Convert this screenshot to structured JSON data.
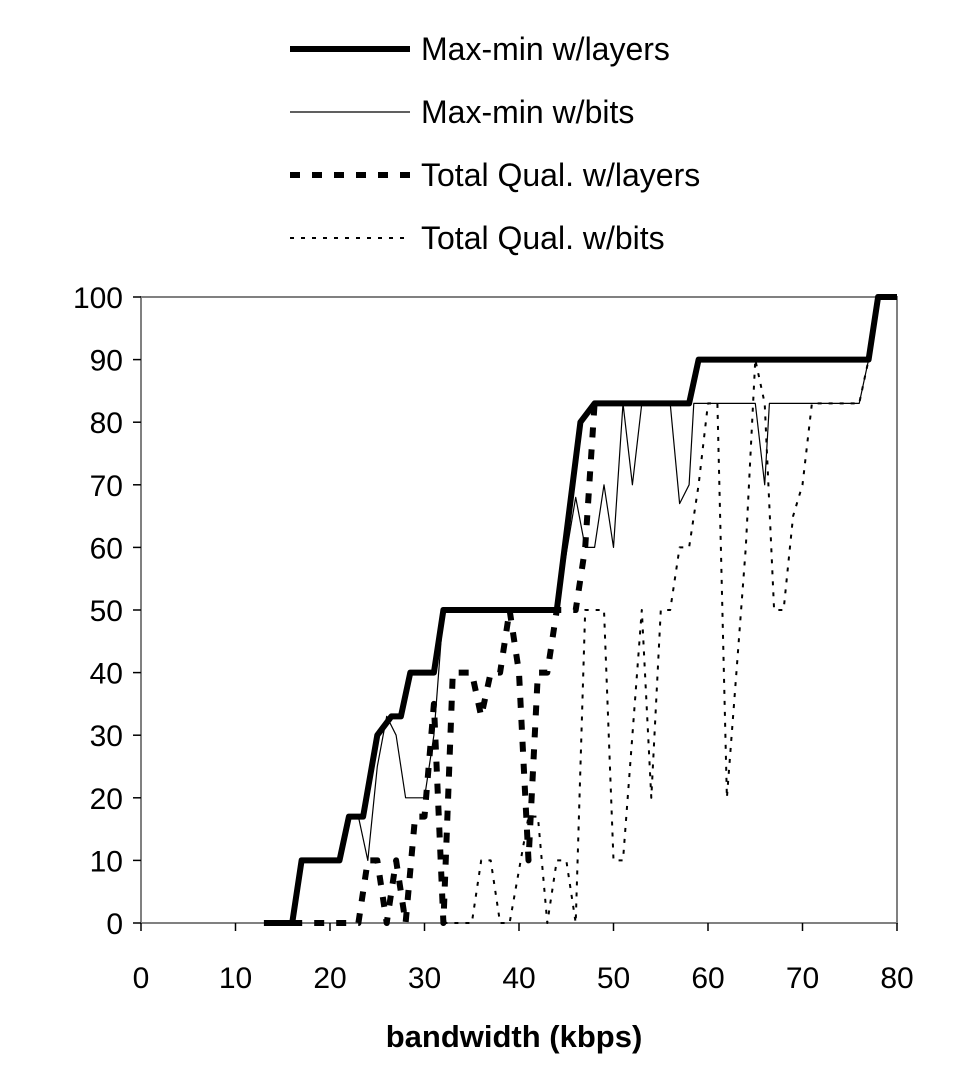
{
  "chart_data": {
    "type": "line",
    "xlabel": "bandwidth (kbps)",
    "ylabel": "",
    "xlim": [
      0,
      80
    ],
    "ylim": [
      0,
      100
    ],
    "x_ticks": [
      0,
      10,
      20,
      30,
      40,
      50,
      60,
      70,
      80
    ],
    "y_ticks": [
      0,
      10,
      20,
      30,
      40,
      50,
      60,
      70,
      80,
      90,
      100
    ],
    "grid": false,
    "legend_position": "top",
    "series": [
      {
        "name": "Max-min w/layers",
        "style": "thick-solid",
        "points": [
          [
            13,
            0
          ],
          [
            16,
            0
          ],
          [
            17,
            10
          ],
          [
            21,
            10
          ],
          [
            22,
            17
          ],
          [
            23.5,
            17
          ],
          [
            25,
            30
          ],
          [
            26.5,
            33
          ],
          [
            27.5,
            33
          ],
          [
            28.5,
            40
          ],
          [
            31,
            40
          ],
          [
            32,
            50
          ],
          [
            44,
            50
          ],
          [
            46.5,
            80
          ],
          [
            48,
            83
          ],
          [
            58,
            83
          ],
          [
            59,
            90
          ],
          [
            77,
            90
          ],
          [
            78,
            100
          ],
          [
            80,
            100
          ]
        ]
      },
      {
        "name": "Max-min w/bits",
        "style": "thin-solid",
        "points": [
          [
            23,
            17
          ],
          [
            24,
            10
          ],
          [
            25,
            25
          ],
          [
            26,
            33
          ],
          [
            27,
            30
          ],
          [
            28,
            20
          ],
          [
            30,
            20
          ],
          [
            31,
            30
          ],
          [
            32,
            50
          ],
          [
            44,
            50
          ],
          [
            46,
            68
          ],
          [
            47,
            60
          ],
          [
            48,
            60
          ],
          [
            49,
            70
          ],
          [
            50,
            60
          ],
          [
            51,
            83
          ],
          [
            52,
            70
          ],
          [
            53,
            83
          ],
          [
            56,
            83
          ],
          [
            57,
            67
          ],
          [
            58,
            70
          ],
          [
            58.5,
            83
          ],
          [
            65,
            83
          ],
          [
            66,
            70
          ],
          [
            66.5,
            83
          ],
          [
            76,
            83
          ],
          [
            77,
            90
          ]
        ]
      },
      {
        "name": "Total Qual. w/layers",
        "style": "thick-dashed",
        "points": [
          [
            16,
            0
          ],
          [
            23,
            0
          ],
          [
            24,
            10
          ],
          [
            25,
            10
          ],
          [
            26,
            0
          ],
          [
            27,
            10
          ],
          [
            28,
            0
          ],
          [
            29,
            17
          ],
          [
            30,
            17
          ],
          [
            31,
            35
          ],
          [
            32,
            0
          ],
          [
            33,
            40
          ],
          [
            35,
            40
          ],
          [
            36,
            33
          ],
          [
            37,
            40
          ],
          [
            38,
            40
          ],
          [
            39,
            50
          ],
          [
            40,
            40
          ],
          [
            41,
            10
          ],
          [
            42,
            40
          ],
          [
            43,
            40
          ],
          [
            44,
            50
          ],
          [
            45,
            50
          ],
          [
            46,
            50
          ],
          [
            47,
            60
          ],
          [
            48,
            83
          ]
        ]
      },
      {
        "name": "Total Qual. w/bits",
        "style": "thin-dotted",
        "points": [
          [
            32,
            0
          ],
          [
            35,
            0
          ],
          [
            36,
            10
          ],
          [
            37,
            10
          ],
          [
            38,
            0
          ],
          [
            39,
            0
          ],
          [
            41,
            17
          ],
          [
            42,
            17
          ],
          [
            43,
            0
          ],
          [
            44,
            10
          ],
          [
            45,
            10
          ],
          [
            46,
            0
          ],
          [
            47,
            50
          ],
          [
            49,
            50
          ],
          [
            50,
            10
          ],
          [
            51,
            10
          ],
          [
            52,
            30
          ],
          [
            53,
            50
          ],
          [
            54,
            20
          ],
          [
            55,
            50
          ],
          [
            56,
            50
          ],
          [
            57,
            60
          ],
          [
            58,
            60
          ],
          [
            59,
            70
          ],
          [
            60,
            83
          ],
          [
            61,
            83
          ],
          [
            62,
            20
          ],
          [
            63,
            40
          ],
          [
            64,
            60
          ],
          [
            65,
            90
          ],
          [
            66,
            83
          ],
          [
            67,
            50
          ],
          [
            68,
            50
          ],
          [
            69,
            65
          ],
          [
            70,
            70
          ],
          [
            71,
            83
          ],
          [
            76,
            83
          ],
          [
            77,
            90
          ]
        ]
      }
    ]
  }
}
